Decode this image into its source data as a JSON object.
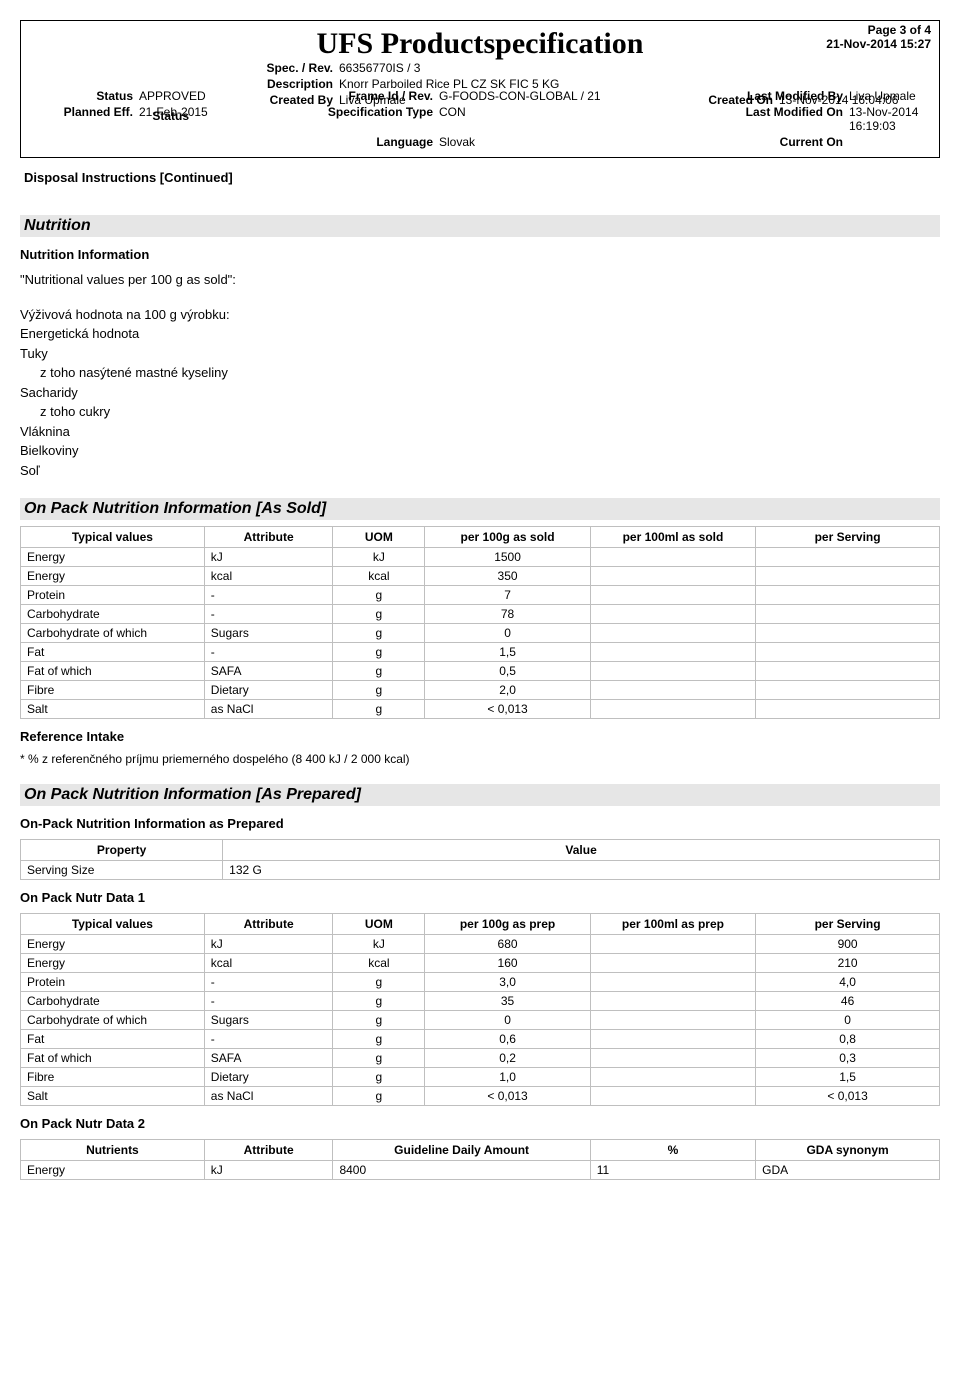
{
  "header": {
    "title": "UFS Productspecification",
    "page": "Page 3 of 4",
    "timestamp": "21-Nov-2014 15:27",
    "labels": {
      "spec_rev": "Spec. / Rev.",
      "description": "Description",
      "created_by": "Created By",
      "created_on": "Created On",
      "status": "Status",
      "frame": "Frame Id / Rev.",
      "last_mod_by": "Last Modified By",
      "planned_eff": "Planned Eff.",
      "spec_type": "Specification Type",
      "last_mod_on": "Last Modified On",
      "language": "Language",
      "current_on": "Current On"
    },
    "values": {
      "spec_rev": "66356770IS  /   3",
      "description": "Knorr Parboiled Rice PL CZ SK FIC 5 KG",
      "created_by": "Liva Upmale",
      "created_on": "13-Nov-2014 16:04:06",
      "status": "APPROVED",
      "frame": "G-FOODS-CON-GLOBAL  /   21",
      "last_mod_by": "Liva Upmale",
      "planned_eff": "21-Feb-2015",
      "spec_type": "CON",
      "last_mod_on": "13-Nov-2014 16:19:03",
      "language": "Slovak",
      "current_on": ""
    }
  },
  "continued": "Disposal Instructions [Continued]",
  "nutrition": {
    "section_title": "Nutrition",
    "info_heading": "Nutrition Information",
    "intro": "\"Nutritional values per 100 g as sold\":",
    "lines": [
      "Výživová hodnota na 100 g výrobku:",
      "Energetická hodnota",
      "Tuky",
      "   z toho nasýtené mastné kyseliny",
      "Sacharidy",
      "   z toho cukry",
      "Vláknina",
      "Bielkoviny",
      "Soľ"
    ]
  },
  "as_sold": {
    "section_title": "On Pack Nutrition Information  [As Sold]",
    "columns": [
      "Typical values",
      "Attribute",
      "UOM",
      "per 100g as sold",
      "per 100ml as sold",
      "per Serving"
    ],
    "rows": [
      [
        "Energy",
        "kJ",
        "kJ",
        "1500",
        "",
        ""
      ],
      [
        "Energy",
        "kcal",
        "kcal",
        "350",
        "",
        ""
      ],
      [
        "Protein",
        "-",
        "g",
        "7",
        "",
        ""
      ],
      [
        "Carbohydrate",
        "-",
        "g",
        "78",
        "",
        ""
      ],
      [
        "Carbohydrate of which",
        "Sugars",
        "g",
        "0",
        "",
        ""
      ],
      [
        "Fat",
        "-",
        "g",
        "1,5",
        "",
        ""
      ],
      [
        "Fat of which",
        "SAFA",
        "g",
        "0,5",
        "",
        ""
      ],
      [
        "Fibre",
        "Dietary",
        "g",
        "2,0",
        "",
        ""
      ],
      [
        "Salt",
        "as NaCl",
        "g",
        "< 0,013",
        "",
        ""
      ]
    ],
    "ref_heading": "Reference Intake",
    "ref_text": "* % z referenčného príjmu priemerného dospelého (8 400 kJ / 2 000 kcal)"
  },
  "as_prep": {
    "section_title": "On Pack Nutrition Information  [As Prepared]",
    "sub_heading": "On-Pack Nutrition Information as Prepared",
    "prop_table": {
      "columns": [
        "Property",
        "Value"
      ],
      "rows": [
        [
          "Serving Size",
          "132 G"
        ]
      ]
    },
    "data1_heading": "On Pack Nutr Data 1",
    "data1_columns": [
      "Typical values",
      "Attribute",
      "UOM",
      "per 100g as prep",
      "per 100ml as prep",
      "per Serving"
    ],
    "data1_rows": [
      [
        "Energy",
        "kJ",
        "kJ",
        "680",
        "",
        "900"
      ],
      [
        "Energy",
        "kcal",
        "kcal",
        "160",
        "",
        "210"
      ],
      [
        "Protein",
        "-",
        "g",
        "3,0",
        "",
        "4,0"
      ],
      [
        "Carbohydrate",
        "-",
        "g",
        "35",
        "",
        "46"
      ],
      [
        "Carbohydrate of which",
        "Sugars",
        "g",
        "0",
        "",
        "0"
      ],
      [
        "Fat",
        "-",
        "g",
        "0,6",
        "",
        "0,8"
      ],
      [
        "Fat of which",
        "SAFA",
        "g",
        "0,2",
        "",
        "0,3"
      ],
      [
        "Fibre",
        "Dietary",
        "g",
        "1,0",
        "",
        "1,5"
      ],
      [
        "Salt",
        "as NaCl",
        "g",
        "< 0,013",
        "",
        "< 0,013"
      ]
    ],
    "data2_heading": "On Pack Nutr Data 2",
    "data2_columns": [
      "Nutrients",
      "Attribute",
      "Guideline Daily Amount",
      "%",
      "GDA synonym"
    ],
    "data2_rows": [
      [
        "Energy",
        "kJ",
        "8400",
        "11",
        "GDA"
      ]
    ]
  }
}
